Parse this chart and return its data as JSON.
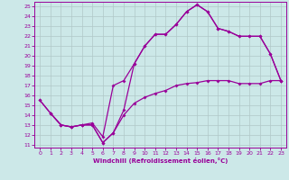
{
  "title": "",
  "xlabel": "Windchill (Refroidissement éolien,°C)",
  "bg_color": "#cce8e8",
  "line_color": "#990099",
  "grid_color": "#b0c8c8",
  "xlim": [
    -0.5,
    23.5
  ],
  "ylim": [
    10.7,
    25.5
  ],
  "xticks": [
    0,
    1,
    2,
    3,
    4,
    5,
    6,
    7,
    8,
    9,
    10,
    11,
    12,
    13,
    14,
    15,
    16,
    17,
    18,
    19,
    20,
    21,
    22,
    23
  ],
  "yticks": [
    11,
    12,
    13,
    14,
    15,
    16,
    17,
    18,
    19,
    20,
    21,
    22,
    23,
    24,
    25
  ],
  "line1_x": [
    0,
    1,
    2,
    3,
    4,
    5,
    6,
    7,
    8,
    9,
    10,
    11,
    12,
    13,
    14,
    15,
    16,
    17,
    18,
    19,
    20,
    21,
    22,
    23
  ],
  "line1_y": [
    15.5,
    14.2,
    13.0,
    12.8,
    13.0,
    13.0,
    11.2,
    12.2,
    14.5,
    19.2,
    21.0,
    22.2,
    22.2,
    23.2,
    24.5,
    25.2,
    24.5,
    22.8,
    22.5,
    22.0,
    22.0,
    22.0,
    20.2,
    17.5
  ],
  "line2_x": [
    0,
    1,
    2,
    3,
    4,
    5,
    6,
    7,
    8,
    9,
    10,
    11,
    12,
    13,
    14,
    15,
    16,
    17,
    18,
    19,
    20,
    21,
    22,
    23
  ],
  "line2_y": [
    15.5,
    14.2,
    13.0,
    12.8,
    13.0,
    13.0,
    11.2,
    12.2,
    14.0,
    15.2,
    15.8,
    16.2,
    16.5,
    17.0,
    17.2,
    17.3,
    17.5,
    17.5,
    17.5,
    17.2,
    17.2,
    17.2,
    17.5,
    17.5
  ],
  "line3_x": [
    1,
    2,
    3,
    4,
    5,
    6,
    7,
    8,
    9,
    10,
    11,
    12,
    13,
    14,
    15,
    16,
    17,
    18,
    19,
    20,
    21,
    22,
    23
  ],
  "line3_y": [
    14.2,
    13.0,
    12.8,
    13.0,
    13.2,
    11.8,
    17.0,
    17.5,
    19.2,
    21.0,
    22.2,
    22.2,
    23.2,
    24.5,
    25.2,
    24.5,
    22.8,
    22.5,
    22.0,
    22.0,
    22.0,
    20.2,
    17.5
  ]
}
